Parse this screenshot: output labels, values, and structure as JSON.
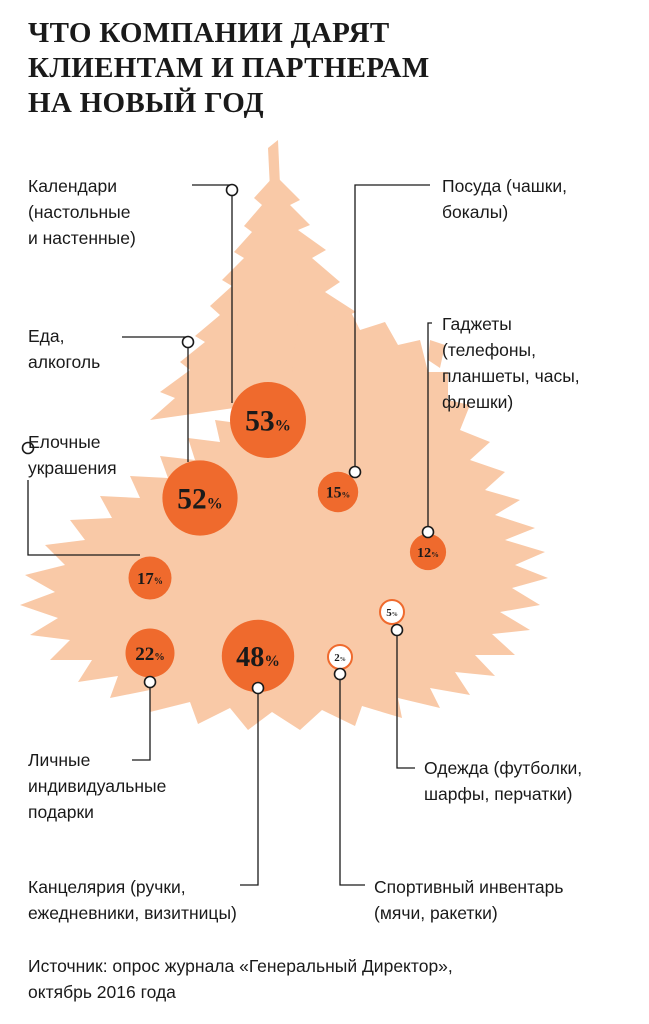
{
  "title_lines": [
    "ЧТО КОМПАНИИ ДАРЯТ",
    "КЛИЕНТАМ И ПАРТНЕРАМ",
    "НА НОВЫЙ ГОД"
  ],
  "colors": {
    "tree": "#f9c9a7",
    "bubble": "#ef6a2d",
    "bubble_light": "#ffffff",
    "text": "#1a1a1a"
  },
  "chart_data": {
    "type": "bubble",
    "unit": "%",
    "items": [
      {
        "id": "calendars",
        "label_lines": [
          "Календари",
          "(настольные",
          "и настенные)"
        ],
        "value": 53
      },
      {
        "id": "food",
        "label_lines": [
          "Еда,",
          "алкоголь"
        ],
        "value": 52
      },
      {
        "id": "decorations",
        "label_lines": [
          "Елочные",
          "украшения"
        ],
        "value": 17
      },
      {
        "id": "personal",
        "label_lines": [
          "Личные",
          "индивидуальные",
          "подарки"
        ],
        "value": 22
      },
      {
        "id": "stationery",
        "label_lines": [
          "Канцелярия (ручки,",
          "ежедневники, визитницы)"
        ],
        "value": 48
      },
      {
        "id": "tableware",
        "label_lines": [
          "Посуда (чашки,",
          "бокалы)"
        ],
        "value": 15
      },
      {
        "id": "gadgets",
        "label_lines": [
          "Гаджеты",
          "(телефоны,",
          "планшеты, часы,",
          "флешки)"
        ],
        "value": 12
      },
      {
        "id": "clothing",
        "label_lines": [
          "Одежда (футболки,",
          "шарфы, перчатки)"
        ],
        "value": 5
      },
      {
        "id": "sports",
        "label_lines": [
          "Спортивный инвентарь",
          "(мячи, ракетки)"
        ],
        "value": 2
      }
    ]
  },
  "source_lines": [
    "Источник: опрос журнала «Генеральный Директор»,",
    "октябрь 2016 года"
  ]
}
